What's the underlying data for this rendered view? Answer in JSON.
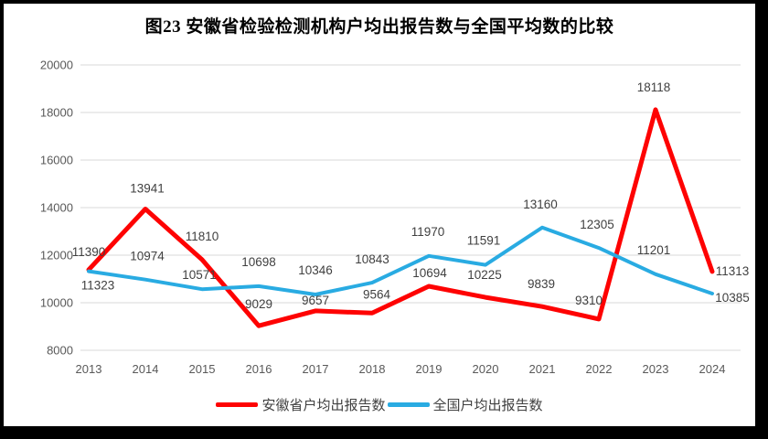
{
  "window": {
    "background": "#FFFFFF",
    "border_color": "#000000"
  },
  "header": {
    "title": "图23 安徽省检验检测机构户均出报告数与全国平均数的比较"
  },
  "chart_data": {
    "type": "line",
    "title": "图23 安徽省检验检测机构户均出报告数与全国平均数的比较",
    "categories": [
      "2013",
      "2014",
      "2015",
      "2016",
      "2017",
      "2018",
      "2019",
      "2020",
      "2021",
      "2022",
      "2023",
      "2024"
    ],
    "series": [
      {
        "name": "安徽省户均出报告数",
        "color": "#FE0202",
        "stroke_width": 5,
        "values": [
          11390,
          13941,
          11810,
          9029,
          9657,
          9564,
          10694,
          10225,
          9839,
          9310,
          18118,
          11313
        ],
        "label_offsets": [
          [
            0,
            -15
          ],
          [
            2,
            -18
          ],
          [
            0,
            -21
          ],
          [
            0,
            -19
          ],
          [
            0,
            -7
          ],
          [
            5,
            -16
          ],
          [
            1,
            -10
          ],
          [
            -1,
            -20
          ],
          [
            -1,
            -20
          ],
          [
            -11,
            -16
          ],
          [
            -2,
            -20
          ],
          [
            22,
            4
          ]
        ]
      },
      {
        "name": "全国户均出报告数",
        "color": "#29ABE2",
        "stroke_width": 4,
        "values": [
          11323,
          10974,
          10571,
          10698,
          10346,
          10843,
          11970,
          11591,
          13160,
          12305,
          11201,
          10385
        ],
        "label_offsets": [
          [
            10,
            20
          ],
          [
            2,
            -21
          ],
          [
            -3,
            -11
          ],
          [
            0,
            -22
          ],
          [
            0,
            -22
          ],
          [
            0,
            -21
          ],
          [
            -1,
            -22
          ],
          [
            -2,
            -22
          ],
          [
            -2,
            -21
          ],
          [
            -2,
            -21
          ],
          [
            -2,
            -22
          ],
          [
            22,
            9
          ]
        ]
      }
    ],
    "ylim": [
      8000,
      20000
    ],
    "yticks": [
      8000,
      10000,
      12000,
      14000,
      16000,
      18000,
      20000
    ],
    "grid": true,
    "legend_position": "bottom",
    "axis_text_color": "#595959",
    "grid_color": "#D9D9D9",
    "data_label_color": "#404040"
  }
}
